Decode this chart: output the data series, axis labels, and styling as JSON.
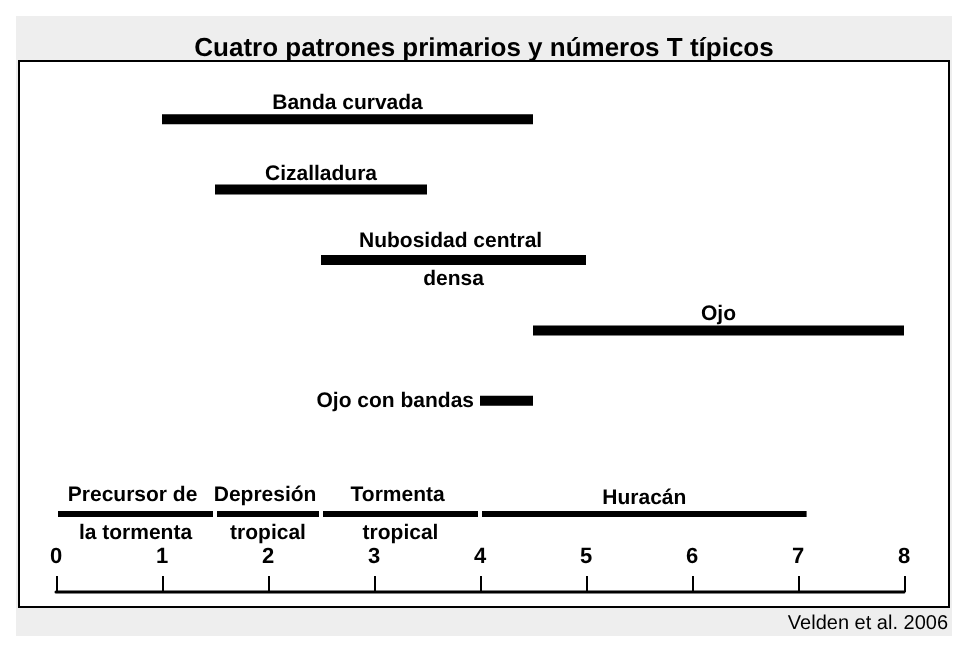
{
  "chart_data": [
    {
      "type": "bar",
      "orientation": "horizontal",
      "title": "Cuatro patrones primarios y números T típicos",
      "categories": [
        null,
        null,
        null,
        null,
        null
      ],
      "series": [
        {
          "color": "#000000",
          "values": [
            3.5,
            2,
            2.5,
            3.5,
            0.5
          ],
          "base": [
            1,
            1.5,
            2.5,
            4.5,
            4
          ],
          "value_labels": [
            "Banda curvada",
            "Cizalladura",
            "Nubosidad central densa",
            "Ojo",
            "Ojo con bandas"
          ]
        }
      ],
      "xlim": [
        0,
        8
      ],
      "tick_labels": false
    },
    {
      "type": "bar",
      "orientation": "horizontal",
      "stacked": true,
      "categories": [
        null
      ],
      "series": [
        {
          "color": "#000000",
          "values": [
            1.5
          ],
          "value_labels": [
            "Precursor de la tormenta"
          ]
        },
        {
          "color": "#000000",
          "values": [
            1
          ],
          "value_labels": [
            "Depresión tropical"
          ]
        },
        {
          "color": "#000000",
          "values": [
            1.5
          ],
          "value_labels": [
            "Tormenta tropical"
          ]
        },
        {
          "color": "#000000",
          "values": [
            3.1
          ],
          "value_labels": [
            "Huracán"
          ]
        }
      ],
      "xlim": [
        0,
        8
      ],
      "xticks": [
        0,
        1,
        2,
        3,
        4,
        5,
        6,
        7,
        8
      ],
      "tick_labels": "x",
      "annotations": [
        "Velden et al. 2006"
      ]
    }
  ]
}
